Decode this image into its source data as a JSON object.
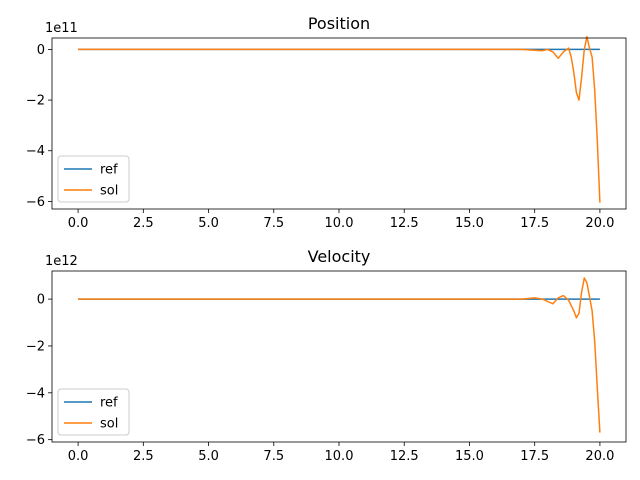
{
  "chart_data": [
    {
      "type": "line",
      "title": "Position",
      "xlabel": "",
      "ylabel": "",
      "y_offset_label": "1e11",
      "xlim": [
        -1,
        21
      ],
      "ylim": [
        -6.3,
        0.45
      ],
      "x_ticks": [
        0,
        2.5,
        5,
        7.5,
        10,
        12.5,
        15,
        17.5,
        20
      ],
      "x_tick_labels": [
        "0.0",
        "2.5",
        "5.0",
        "7.5",
        "10.0",
        "12.5",
        "15.0",
        "17.5",
        "20.0"
      ],
      "y_ticks": [
        0,
        -2,
        -4,
        -6
      ],
      "y_tick_labels": [
        "0",
        "−2",
        "−4",
        "−6"
      ],
      "legend": "lower-left",
      "grid": false,
      "series": [
        {
          "name": "ref",
          "color": "#1f77b4",
          "x": [
            0,
            20
          ],
          "y": [
            0,
            0
          ]
        },
        {
          "name": "sol",
          "color": "#ff7f0e",
          "x": [
            0,
            17.0,
            17.5,
            17.8,
            18.0,
            18.2,
            18.4,
            18.6,
            18.8,
            18.9,
            19.0,
            19.1,
            19.2,
            19.3,
            19.4,
            19.5,
            19.6,
            19.7,
            19.8,
            19.9,
            20.0
          ],
          "y": [
            0,
            0,
            -0.03,
            -0.05,
            0,
            -0.1,
            -0.35,
            -0.1,
            0.05,
            -0.3,
            -0.9,
            -1.7,
            -2.0,
            -1.1,
            0.0,
            0.5,
            0.05,
            -0.3,
            -1.6,
            -3.6,
            -6.05
          ]
        }
      ]
    },
    {
      "type": "line",
      "title": "Velocity",
      "xlabel": "",
      "ylabel": "",
      "y_offset_label": "1e12",
      "xlim": [
        -1,
        21
      ],
      "ylim": [
        -6.1,
        1.2
      ],
      "x_ticks": [
        0,
        2.5,
        5,
        7.5,
        10,
        12.5,
        15,
        17.5,
        20
      ],
      "x_tick_labels": [
        "0.0",
        "2.5",
        "5.0",
        "7.5",
        "10.0",
        "12.5",
        "15.0",
        "17.5",
        "20.0"
      ],
      "y_ticks": [
        0,
        -2,
        -4,
        -6
      ],
      "y_tick_labels": [
        "0",
        "−2",
        "−4",
        "−6"
      ],
      "legend": "lower-left",
      "grid": false,
      "series": [
        {
          "name": "ref",
          "color": "#1f77b4",
          "x": [
            0,
            20
          ],
          "y": [
            0,
            0
          ]
        },
        {
          "name": "sol",
          "color": "#ff7f0e",
          "x": [
            0,
            17.0,
            17.5,
            17.8,
            18.0,
            18.2,
            18.4,
            18.6,
            18.8,
            19.0,
            19.1,
            19.2,
            19.3,
            19.4,
            19.5,
            19.6,
            19.7,
            19.8,
            19.9,
            20.0
          ],
          "y": [
            0,
            0,
            0.05,
            0.0,
            -0.1,
            -0.2,
            0.05,
            0.15,
            -0.05,
            -0.5,
            -0.8,
            -0.6,
            0.3,
            0.9,
            0.7,
            0.1,
            -0.5,
            -1.8,
            -3.8,
            -5.7
          ]
        }
      ]
    }
  ]
}
